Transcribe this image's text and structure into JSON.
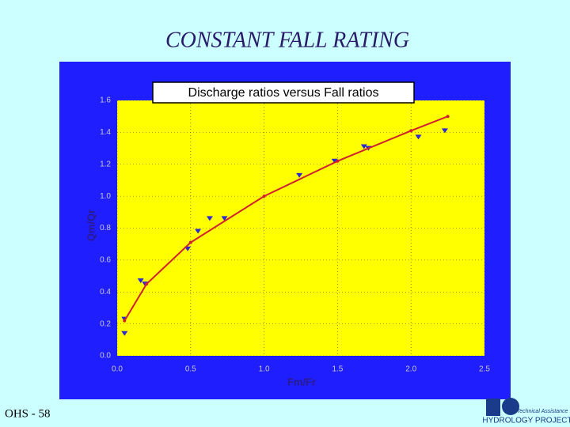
{
  "slide": {
    "title": "CONSTANT FALL RATING",
    "footer": "OHS - 58",
    "logo": {
      "name": "HYDROLOGY PROJECT",
      "tagline": "Technical Assistance"
    }
  },
  "chart_data": {
    "type": "scatter",
    "title": "Discharge ratios versus Fall ratios",
    "x_label": "Fm/Fr",
    "y_label": "Qm/Qr",
    "xlim": [
      0,
      2.5
    ],
    "ylim": [
      0,
      1.6
    ],
    "xticks": [
      {
        "value": 0,
        "label": "0.0"
      },
      0.5,
      {
        "value": 1,
        "label": "1.0"
      },
      1.5,
      {
        "value": 2,
        "label": "2.0"
      },
      2.5
    ],
    "yticks": [
      {
        "value": 0,
        "label": "0.0"
      },
      0.2,
      0.4,
      0.6,
      0.8,
      {
        "value": 1,
        "label": "1.0"
      },
      1.2,
      1.4,
      1.6
    ],
    "grid": true,
    "series": [
      {
        "color": "#2a2ad0",
        "marker": "triangle-down",
        "x": [
          0.05,
          0.05,
          0.16,
          0.19,
          0.48,
          0.55,
          0.63,
          0.73,
          1.24,
          1.48,
          1.68,
          1.71,
          2.05,
          2.23
        ],
        "values": [
          0.14,
          0.23,
          0.47,
          0.45,
          0.67,
          0.78,
          0.86,
          0.86,
          1.13,
          1.22,
          1.31,
          1.3,
          1.37,
          1.41
        ]
      },
      {
        "color": "#d02030",
        "line": true,
        "x": [
          0.05,
          0.2,
          0.5,
          1.0,
          1.5,
          2.0,
          2.25
        ],
        "values": [
          0.22,
          0.45,
          0.71,
          1.0,
          1.22,
          1.41,
          1.5
        ]
      }
    ]
  }
}
